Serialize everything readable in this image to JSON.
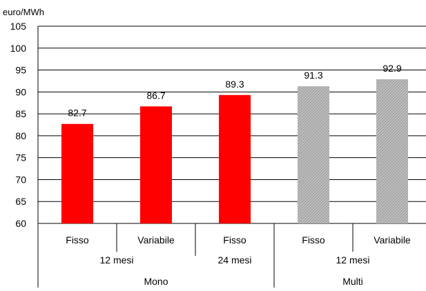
{
  "chart_data": {
    "type": "bar",
    "ylabel": "euro/MWh",
    "ylim": [
      60,
      105
    ],
    "yticks": [
      60,
      65,
      70,
      75,
      80,
      85,
      90,
      95,
      100,
      105
    ],
    "grid": true,
    "categories": [
      "Fisso",
      "Variabile",
      "Fisso",
      "Fisso",
      "Variabile"
    ],
    "values": [
      82.7,
      86.7,
      89.3,
      91.3,
      92.9
    ],
    "value_labels": [
      "82.7",
      "86.7",
      "89.3",
      "91.3",
      "92.9"
    ],
    "bar_styles": [
      "solid",
      "solid",
      "solid",
      "hatched",
      "hatched"
    ],
    "colors": {
      "solid": "#ff0000",
      "hatched": "#bfbfbf",
      "hatch_line": "#808080",
      "grid": "#000000"
    },
    "group_levels": [
      [
        {
          "label": "12 mesi",
          "span": 2
        },
        {
          "label": "24 mesi",
          "span": 1
        },
        {
          "label": "12 mesi",
          "span": 2
        }
      ],
      [
        {
          "label": "Mono",
          "span": 3
        },
        {
          "label": "Multi",
          "span": 2
        }
      ]
    ]
  }
}
